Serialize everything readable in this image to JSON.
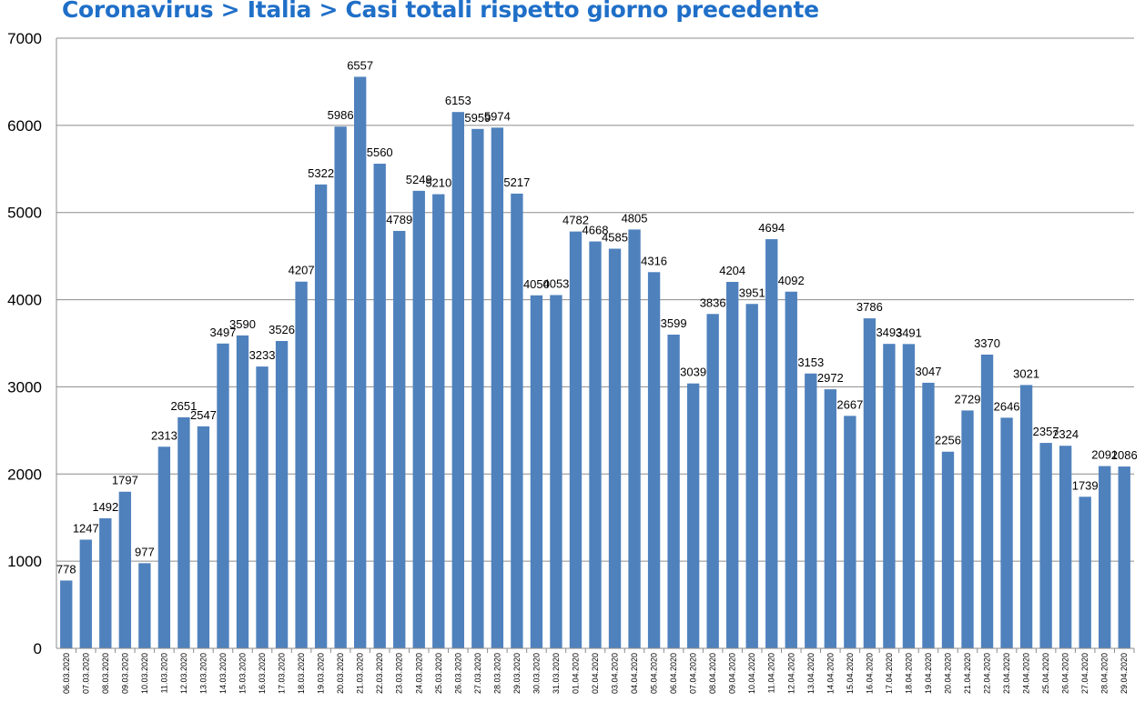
{
  "chart_data": {
    "type": "bar",
    "title": "Coronavirus > Italia > Casi totali rispetto giorno precedente",
    "xlabel": "",
    "ylabel": "",
    "ylim": [
      0,
      7000
    ],
    "yticks": [
      0,
      1000,
      2000,
      3000,
      4000,
      5000,
      6000,
      7000
    ],
    "grid": true,
    "legend": "none",
    "bar_color": "#4f81bd",
    "title_color": "#1f6fc8",
    "categories": [
      "06.03.2020",
      "07.03.2020",
      "08.03.2020",
      "09.03.2020",
      "10.03.2020",
      "11.03.2020",
      "12.03.2020",
      "13.03.2020",
      "14.03.2020",
      "15.03.2020",
      "16.03.2020",
      "17.03.2020",
      "18.03.2020",
      "19.03.2020",
      "20.03.2020",
      "21.03.2020",
      "22.03.2020",
      "23.03.2020",
      "24.03.2020",
      "25.03.2020",
      "26.03.2020",
      "27.03.2020",
      "28.03.2020",
      "29.03.2020",
      "30.03.2020",
      "31.03.2020",
      "01.04.2020",
      "02.04.2020",
      "03.04.2020",
      "04.04.2020",
      "05.04.2020",
      "06.04.2020",
      "07.04.2020",
      "08.04.2020",
      "09.04.2020",
      "10.04.2020",
      "11.04.2020",
      "12.04.2020",
      "13.04.2020",
      "14.04.2020",
      "15.04.2020",
      "16.04.2020",
      "17.04.2020",
      "18.04.2020",
      "19.04.2020",
      "20.04.2020",
      "21.04.2020",
      "22.04.2020",
      "23.04.2020",
      "24.04.2020",
      "25.04.2020",
      "26.04.2020",
      "27.04.2020",
      "28.04.2020",
      "29.04.2020"
    ],
    "values": [
      778,
      1247,
      1492,
      1797,
      977,
      2313,
      2651,
      2547,
      3497,
      3590,
      3233,
      3526,
      4207,
      5322,
      5986,
      6557,
      5560,
      4789,
      5249,
      5210,
      6153,
      5959,
      5974,
      5217,
      4050,
      4053,
      4782,
      4668,
      4585,
      4805,
      4316,
      3599,
      3039,
      3836,
      4204,
      3951,
      4694,
      4092,
      3153,
      2972,
      2667,
      3786,
      3493,
      3491,
      3047,
      2256,
      2729,
      3370,
      2646,
      3021,
      2357,
      2324,
      1739,
      2091,
      2086
    ]
  }
}
